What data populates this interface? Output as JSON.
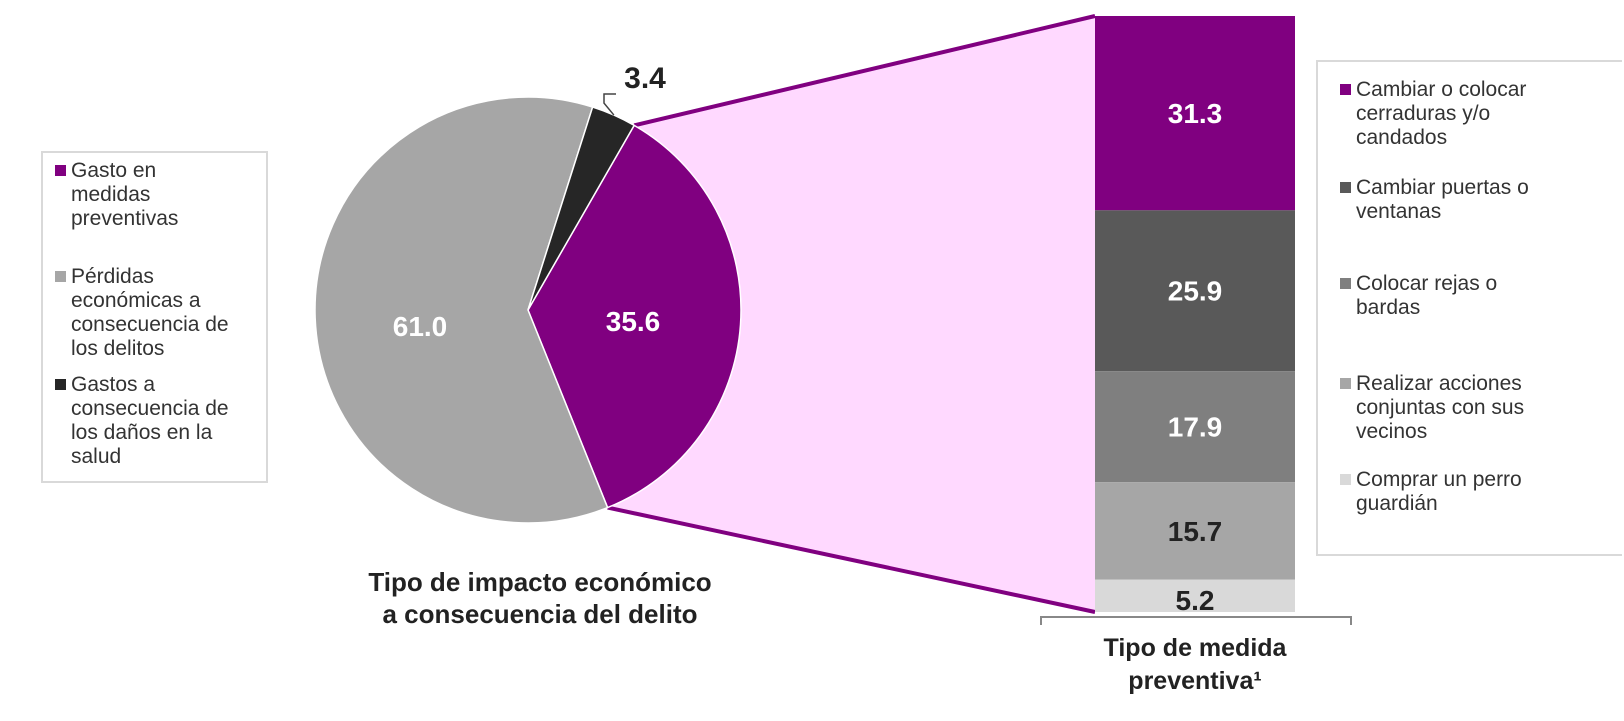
{
  "colors": {
    "purple": "#800080",
    "pie_gray": "#a6a6a6",
    "pie_dark": "#262626",
    "bar_dark": "#595959",
    "bar_mid": "#7f7f7f",
    "bar_light": "#a6a6a6",
    "bar_lightest": "#d9d9d9",
    "connector_fill": "#ffd9ff"
  },
  "chart_data": [
    {
      "type": "pie",
      "title": "Tipo de impacto económico a consecuencia del delito",
      "title_lines": [
        "Tipo de impacto económico",
        "a consecuencia del delito"
      ],
      "slices": [
        {
          "name": "Gasto en medidas preventivas",
          "value": 35.6,
          "label": "35.6",
          "color": "#800080"
        },
        {
          "name": "Pérdidas económicas a consecuencia de los delitos",
          "value": 61.0,
          "label": "61.0",
          "color": "#a6a6a6"
        },
        {
          "name": "Gastos a consecuencia de los daños en la salud",
          "value": 3.4,
          "label": "3.4",
          "color": "#262626"
        }
      ],
      "legend": {
        "placement": "left",
        "items": [
          {
            "lines": [
              "Gasto en",
              "medidas",
              "preventivas"
            ],
            "color": "#800080"
          },
          {
            "lines": [
              "Pérdidas",
              "económicas a",
              "consecuencia de",
              "los delitos"
            ],
            "color": "#a6a6a6"
          },
          {
            "lines": [
              "Gastos a",
              "consecuencia de",
              "los daños en la",
              "salud"
            ],
            "color": "#262626"
          }
        ]
      }
    },
    {
      "type": "bar",
      "stacked": true,
      "xlabel": "Tipo de medida preventiva¹",
      "xlabel_lines": [
        "Tipo de medida",
        "preventiva¹"
      ],
      "series": [
        {
          "name": "Cambiar o colocar cerraduras y/o candados",
          "value": 31.3,
          "label": "31.3",
          "color": "#800080"
        },
        {
          "name": "Cambiar puertas o ventanas",
          "value": 25.9,
          "label": "25.9",
          "color": "#595959"
        },
        {
          "name": "Colocar rejas o bardas",
          "value": 17.9,
          "label": "17.9",
          "color": "#7f7f7f"
        },
        {
          "name": "Realizar acciones conjuntas con sus vecinos",
          "value": 15.7,
          "label": "15.7",
          "color": "#a6a6a6"
        },
        {
          "name": "Comprar un perro guardián",
          "value": 5.2,
          "label": "5.2",
          "color": "#d9d9d9"
        }
      ],
      "legend": {
        "placement": "right",
        "items": [
          {
            "lines": [
              "Cambiar o colocar",
              "cerraduras y/o",
              "candados"
            ],
            "color": "#800080"
          },
          {
            "lines": [
              "Cambiar puertas o",
              "ventanas"
            ],
            "color": "#595959"
          },
          {
            "lines": [
              "Colocar rejas o",
              "bardas"
            ],
            "color": "#7f7f7f"
          },
          {
            "lines": [
              "Realizar acciones",
              "conjuntas con sus",
              "vecinos"
            ],
            "color": "#a6a6a6"
          },
          {
            "lines": [
              "Comprar un perro",
              "guardián"
            ],
            "color": "#d9d9d9"
          }
        ]
      }
    }
  ]
}
